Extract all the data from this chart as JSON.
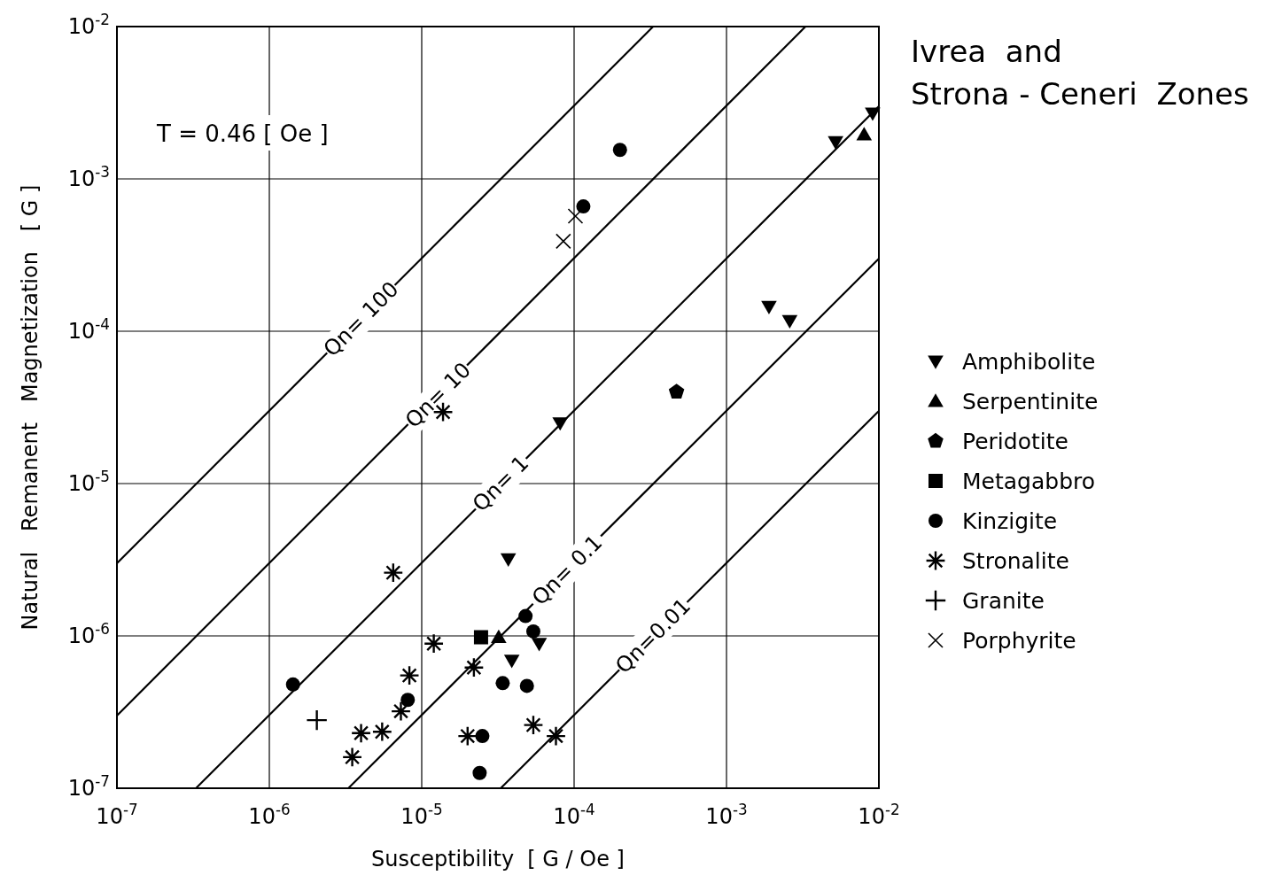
{
  "chart_data": {
    "type": "scatter",
    "title": "Ivrea  and\nStrona - Ceneri  Zones",
    "xlabel": "Susceptibility  [ G / Oe ]",
    "ylabel": "Natural   Remanent   Magnetization   [ G ]",
    "log": "xy",
    "grid": true,
    "legend": "right",
    "xlim": [
      1e-07,
      0.01
    ],
    "ylim": [
      1e-07,
      0.01
    ],
    "xticks": [
      {
        "value": 1e-07,
        "label": "10$^{-7}$"
      },
      {
        "value": 1e-06,
        "label": "10$^{-6}$"
      },
      {
        "value": 1e-05,
        "label": "10$^{-5}$"
      },
      {
        "value": 0.0001,
        "label": "10$^{-4}$"
      },
      {
        "value": 0.001,
        "label": "10$^{-3}$"
      },
      {
        "value": 0.01,
        "label": "10$^{-2}$"
      }
    ],
    "yticks": [
      {
        "value": 1e-07,
        "label": "10$^{-7}$"
      },
      {
        "value": 1e-06,
        "label": "10$^{-6}$"
      },
      {
        "value": 1e-05,
        "label": "10$^{-5}$"
      },
      {
        "value": 0.0001,
        "label": "10$^{-4}$"
      },
      {
        "value": 0.001,
        "label": "10$^{-3}$"
      },
      {
        "value": 0.01,
        "label": "10$^{-2}$"
      }
    ],
    "annotations": [
      "T = 0.46 [ Oe ]",
      {
        "text": "Qn= 100",
        "x": 4e-06,
        "y": 0.00012
      },
      {
        "text": "Qn= 10",
        "x": 1.28e-05,
        "y": 3.8e-05
      },
      {
        "text": "Qn= 1",
        "x": 3.3e-05,
        "y": 1e-05
      },
      {
        "text": "Qn= 0.1",
        "x": 9e-05,
        "y": 2.7e-06
      },
      {
        "text": "Qn=0.01",
        "x": 0.00033,
        "y": 1e-06
      }
    ],
    "series": [
      {
        "type": "line",
        "color": "#000000",
        "x": [
          1e-07,
          0.00033
        ],
        "values": [
          3e-06,
          0.01
        ]
      },
      {
        "type": "line",
        "color": "#000000",
        "x": [
          1e-07,
          0.0033
        ],
        "values": [
          3e-07,
          0.01
        ]
      },
      {
        "type": "line",
        "color": "#000000",
        "x": [
          3.3e-07,
          0.01
        ],
        "values": [
          1e-07,
          0.003
        ]
      },
      {
        "type": "line",
        "color": "#000000",
        "x": [
          3.3e-06,
          0.01
        ],
        "values": [
          1e-07,
          0.0003
        ]
      },
      {
        "type": "line",
        "color": "#000000",
        "x": [
          3.3e-05,
          0.01
        ],
        "values": [
          1e-07,
          3e-05
        ]
      },
      {
        "name": "Amphibolite",
        "color": "#000000",
        "x": [
          0.0091,
          0.0052,
          0.0019,
          0.0026,
          8.1e-05,
          3.7e-05,
          3.9e-05,
          5.9e-05
        ],
        "values": [
          0.0027,
          0.00175,
          0.000145,
          0.000117,
          2.5e-05,
          3.2e-06,
          6.9e-07,
          8.9e-07
        ]
      },
      {
        "name": "Serpentinite",
        "color": "#000000",
        "marker": "triangle",
        "x": [
          0.008,
          3.2e-05
        ],
        "values": [
          0.00195,
          9.8e-07
        ]
      },
      {
        "name": "Peridotite",
        "color": "#000000",
        "x": [
          0.00047
        ],
        "values": [
          4e-05
        ]
      },
      {
        "name": "Metagabbro",
        "color": "#000000",
        "marker": "square",
        "x": [
          2.45e-05
        ],
        "values": [
          9.8e-07
        ]
      },
      {
        "name": "Kinzigite",
        "color": "#000000",
        "marker": "circle",
        "x": [
          0.0002,
          0.000115,
          1.43e-06,
          8.1e-06,
          4.8e-05,
          5.4e-05,
          3.4e-05,
          4.9e-05,
          2.5e-05,
          2.4e-05
        ],
        "values": [
          0.00155,
          0.00066,
          4.8e-07,
          3.8e-07,
          1.35e-06,
          1.07e-06,
          4.9e-07,
          4.7e-07,
          2.2e-07,
          1.26e-07
        ]
      },
      {
        "name": "Stronalite",
        "color": "#000000",
        "x": [
          1.38e-05,
          6.5e-06,
          1.2e-05,
          8.3e-06,
          7.3e-06,
          5.5e-06,
          4e-06,
          3.5e-06,
          2.2e-05,
          2e-05,
          5.4e-05,
          7.6e-05
        ],
        "values": [
          2.95e-05,
          2.6e-06,
          8.9e-07,
          5.5e-07,
          3.2e-07,
          2.35e-07,
          2.3e-07,
          1.6e-07,
          6.2e-07,
          2.2e-07,
          2.6e-07,
          2.2e-07
        ]
      },
      {
        "name": "Granite",
        "color": "#000000",
        "x": [
          2.05e-06
        ],
        "values": [
          2.8e-07
        ]
      },
      {
        "name": "Porphyrite",
        "color": "#000000",
        "x": [
          0.000102,
          8.5e-05
        ],
        "values": [
          0.00057,
          0.00039
        ]
      }
    ]
  }
}
